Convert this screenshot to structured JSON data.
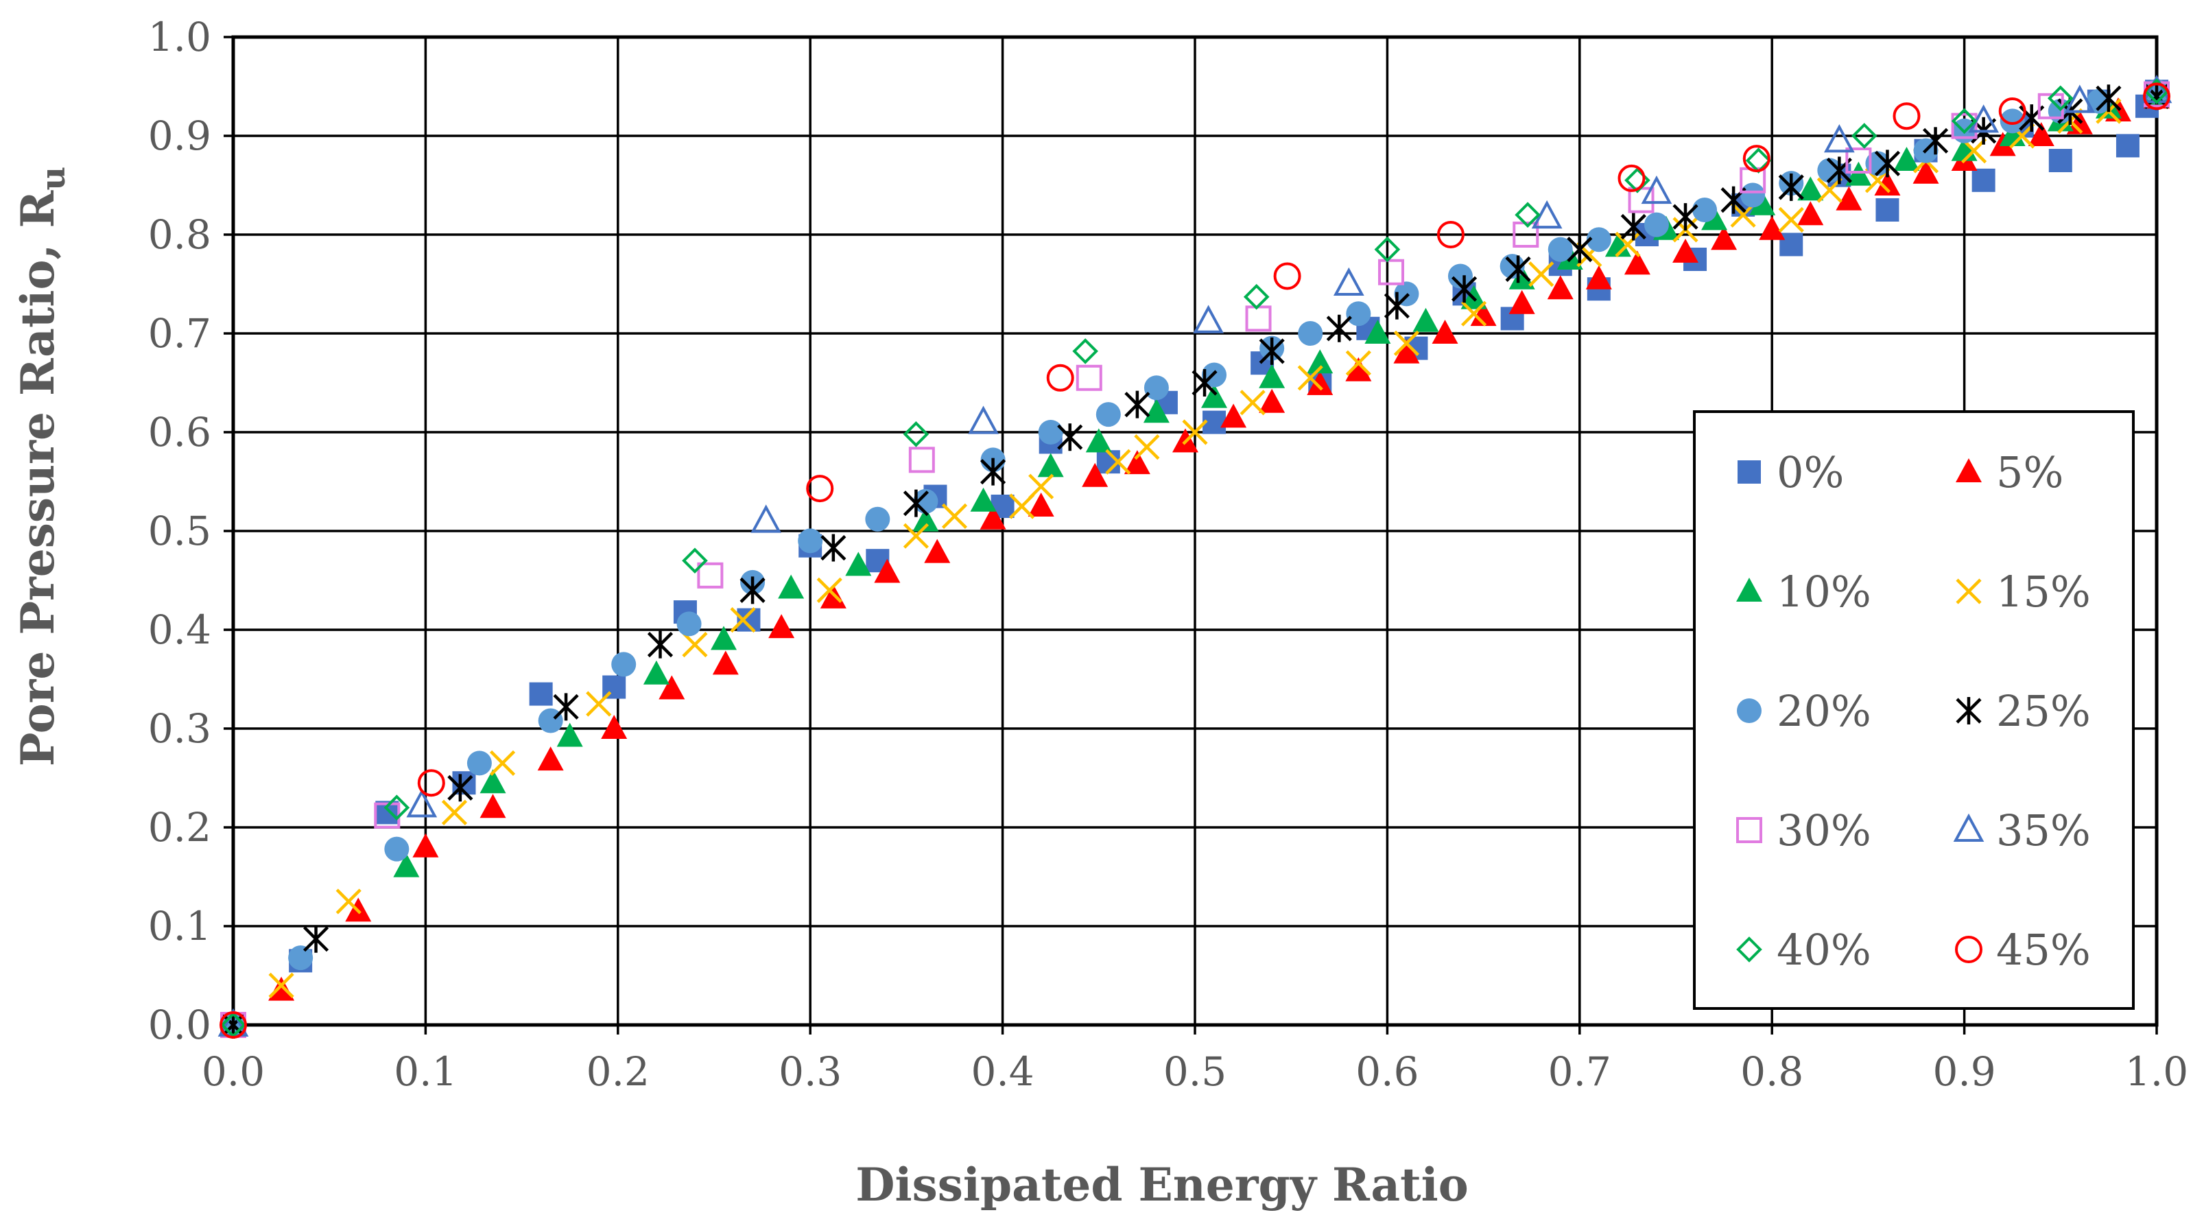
{
  "chart_data": {
    "type": "scatter",
    "title": "",
    "xlabel": "Dissipated Energy Ratio",
    "ylabel": "Pore Pressure Ratio, R",
    "ylabel_subscript": "u",
    "xlim": [
      0,
      1
    ],
    "ylim": [
      0,
      1
    ],
    "x_ticks": [
      "0.0",
      "0.1",
      "0.2",
      "0.3",
      "0.4",
      "0.5",
      "0.6",
      "0.7",
      "0.8",
      "0.9",
      "1.0"
    ],
    "y_ticks": [
      "0.0",
      "0.1",
      "0.2",
      "0.3",
      "0.4",
      "0.5",
      "0.6",
      "0.7",
      "0.8",
      "0.9",
      "1.0"
    ],
    "grid": true,
    "legend_position": "bottom-right",
    "series": [
      {
        "name": "0%",
        "marker": "square-filled",
        "color": "#4472C4",
        "points": [
          [
            0,
            0
          ],
          [
            0.035,
            0.065
          ],
          [
            0.08,
            0.215
          ],
          [
            0.12,
            0.245
          ],
          [
            0.16,
            0.335
          ],
          [
            0.198,
            0.342
          ],
          [
            0.235,
            0.418
          ],
          [
            0.268,
            0.41
          ],
          [
            0.3,
            0.485
          ],
          [
            0.335,
            0.47
          ],
          [
            0.365,
            0.535
          ],
          [
            0.4,
            0.525
          ],
          [
            0.425,
            0.59
          ],
          [
            0.455,
            0.57
          ],
          [
            0.485,
            0.63
          ],
          [
            0.51,
            0.61
          ],
          [
            0.535,
            0.67
          ],
          [
            0.565,
            0.65
          ],
          [
            0.59,
            0.705
          ],
          [
            0.615,
            0.685
          ],
          [
            0.64,
            0.74
          ],
          [
            0.665,
            0.715
          ],
          [
            0.69,
            0.77
          ],
          [
            0.71,
            0.745
          ],
          [
            0.735,
            0.8
          ],
          [
            0.76,
            0.775
          ],
          [
            0.785,
            0.83
          ],
          [
            0.81,
            0.79
          ],
          [
            0.835,
            0.86
          ],
          [
            0.86,
            0.825
          ],
          [
            0.88,
            0.885
          ],
          [
            0.91,
            0.855
          ],
          [
            0.93,
            0.91
          ],
          [
            0.95,
            0.875
          ],
          [
            0.97,
            0.935
          ],
          [
            0.985,
            0.89
          ],
          [
            0.995,
            0.93
          ],
          [
            1.0,
            0.945
          ]
        ]
      },
      {
        "name": "5%",
        "marker": "triangle-filled",
        "color": "#FF0000",
        "points": [
          [
            0,
            0
          ],
          [
            0.025,
            0.035
          ],
          [
            0.065,
            0.115
          ],
          [
            0.1,
            0.18
          ],
          [
            0.135,
            0.22
          ],
          [
            0.165,
            0.268
          ],
          [
            0.198,
            0.3
          ],
          [
            0.228,
            0.34
          ],
          [
            0.256,
            0.365
          ],
          [
            0.285,
            0.402
          ],
          [
            0.312,
            0.432
          ],
          [
            0.34,
            0.458
          ],
          [
            0.366,
            0.478
          ],
          [
            0.395,
            0.512
          ],
          [
            0.42,
            0.525
          ],
          [
            0.448,
            0.555
          ],
          [
            0.47,
            0.568
          ],
          [
            0.495,
            0.59
          ],
          [
            0.52,
            0.615
          ],
          [
            0.54,
            0.63
          ],
          [
            0.565,
            0.648
          ],
          [
            0.585,
            0.662
          ],
          [
            0.61,
            0.68
          ],
          [
            0.63,
            0.7
          ],
          [
            0.65,
            0.718
          ],
          [
            0.67,
            0.73
          ],
          [
            0.69,
            0.745
          ],
          [
            0.71,
            0.755
          ],
          [
            0.73,
            0.77
          ],
          [
            0.755,
            0.782
          ],
          [
            0.775,
            0.795
          ],
          [
            0.8,
            0.805
          ],
          [
            0.82,
            0.82
          ],
          [
            0.84,
            0.835
          ],
          [
            0.86,
            0.85
          ],
          [
            0.88,
            0.862
          ],
          [
            0.9,
            0.875
          ],
          [
            0.92,
            0.89
          ],
          [
            0.94,
            0.9
          ],
          [
            0.96,
            0.912
          ],
          [
            0.98,
            0.925
          ],
          [
            1.0,
            0.938
          ]
        ]
      },
      {
        "name": "10%",
        "marker": "triangle-filled",
        "color": "#00B050",
        "points": [
          [
            0,
            0
          ],
          [
            0.09,
            0.16
          ],
          [
            0.135,
            0.245
          ],
          [
            0.175,
            0.292
          ],
          [
            0.22,
            0.355
          ],
          [
            0.255,
            0.39
          ],
          [
            0.29,
            0.442
          ],
          [
            0.325,
            0.465
          ],
          [
            0.36,
            0.51
          ],
          [
            0.39,
            0.53
          ],
          [
            0.425,
            0.565
          ],
          [
            0.45,
            0.59
          ],
          [
            0.48,
            0.62
          ],
          [
            0.51,
            0.635
          ],
          [
            0.54,
            0.655
          ],
          [
            0.565,
            0.67
          ],
          [
            0.595,
            0.7
          ],
          [
            0.62,
            0.712
          ],
          [
            0.645,
            0.735
          ],
          [
            0.67,
            0.755
          ],
          [
            0.695,
            0.775
          ],
          [
            0.72,
            0.788
          ],
          [
            0.745,
            0.805
          ],
          [
            0.77,
            0.815
          ],
          [
            0.795,
            0.83
          ],
          [
            0.82,
            0.845
          ],
          [
            0.845,
            0.86
          ],
          [
            0.87,
            0.875
          ],
          [
            0.9,
            0.885
          ],
          [
            0.925,
            0.9
          ],
          [
            0.95,
            0.915
          ],
          [
            0.975,
            0.928
          ],
          [
            1.0,
            0.94
          ]
        ]
      },
      {
        "name": "15%",
        "marker": "x",
        "color": "#FFC000",
        "points": [
          [
            0,
            0
          ],
          [
            0.025,
            0.04
          ],
          [
            0.06,
            0.125
          ],
          [
            0.115,
            0.215
          ],
          [
            0.14,
            0.265
          ],
          [
            0.19,
            0.325
          ],
          [
            0.24,
            0.385
          ],
          [
            0.265,
            0.41
          ],
          [
            0.31,
            0.44
          ],
          [
            0.355,
            0.495
          ],
          [
            0.375,
            0.515
          ],
          [
            0.41,
            0.525
          ],
          [
            0.42,
            0.545
          ],
          [
            0.46,
            0.57
          ],
          [
            0.475,
            0.585
          ],
          [
            0.5,
            0.6
          ],
          [
            0.53,
            0.63
          ],
          [
            0.56,
            0.655
          ],
          [
            0.585,
            0.67
          ],
          [
            0.61,
            0.69
          ],
          [
            0.645,
            0.72
          ],
          [
            0.68,
            0.76
          ],
          [
            0.705,
            0.78
          ],
          [
            0.725,
            0.79
          ],
          [
            0.755,
            0.805
          ],
          [
            0.785,
            0.82
          ],
          [
            0.81,
            0.815
          ],
          [
            0.83,
            0.845
          ],
          [
            0.855,
            0.855
          ],
          [
            0.88,
            0.875
          ],
          [
            0.905,
            0.885
          ],
          [
            0.93,
            0.9
          ],
          [
            0.955,
            0.915
          ],
          [
            0.975,
            0.925
          ],
          [
            1.0,
            0.94
          ]
        ]
      },
      {
        "name": "20%",
        "marker": "circle-filled",
        "color": "#5B9BD5",
        "points": [
          [
            0,
            0
          ],
          [
            0.035,
            0.068
          ],
          [
            0.085,
            0.178
          ],
          [
            0.128,
            0.265
          ],
          [
            0.165,
            0.308
          ],
          [
            0.203,
            0.365
          ],
          [
            0.237,
            0.406
          ],
          [
            0.27,
            0.448
          ],
          [
            0.3,
            0.49
          ],
          [
            0.335,
            0.512
          ],
          [
            0.36,
            0.53
          ],
          [
            0.395,
            0.572
          ],
          [
            0.425,
            0.6
          ],
          [
            0.455,
            0.618
          ],
          [
            0.48,
            0.645
          ],
          [
            0.51,
            0.658
          ],
          [
            0.54,
            0.685
          ],
          [
            0.56,
            0.7
          ],
          [
            0.585,
            0.72
          ],
          [
            0.61,
            0.74
          ],
          [
            0.638,
            0.758
          ],
          [
            0.665,
            0.768
          ],
          [
            0.69,
            0.785
          ],
          [
            0.71,
            0.795
          ],
          [
            0.74,
            0.81
          ],
          [
            0.765,
            0.825
          ],
          [
            0.79,
            0.84
          ],
          [
            0.81,
            0.852
          ],
          [
            0.83,
            0.865
          ],
          [
            0.855,
            0.872
          ],
          [
            0.88,
            0.885
          ],
          [
            0.9,
            0.905
          ],
          [
            0.925,
            0.915
          ],
          [
            0.95,
            0.925
          ],
          [
            0.97,
            0.935
          ],
          [
            1.0,
            0.945
          ]
        ]
      },
      {
        "name": "25%",
        "marker": "star",
        "color": "#000000",
        "points": [
          [
            0,
            0
          ],
          [
            0.043,
            0.087
          ],
          [
            0.118,
            0.24
          ],
          [
            0.173,
            0.322
          ],
          [
            0.222,
            0.385
          ],
          [
            0.27,
            0.44
          ],
          [
            0.312,
            0.483
          ],
          [
            0.355,
            0.528
          ],
          [
            0.395,
            0.56
          ],
          [
            0.435,
            0.595
          ],
          [
            0.47,
            0.628
          ],
          [
            0.505,
            0.65
          ],
          [
            0.54,
            0.682
          ],
          [
            0.575,
            0.705
          ],
          [
            0.605,
            0.728
          ],
          [
            0.64,
            0.745
          ],
          [
            0.668,
            0.765
          ],
          [
            0.7,
            0.785
          ],
          [
            0.728,
            0.808
          ],
          [
            0.755,
            0.818
          ],
          [
            0.78,
            0.835
          ],
          [
            0.81,
            0.848
          ],
          [
            0.835,
            0.865
          ],
          [
            0.86,
            0.872
          ],
          [
            0.885,
            0.895
          ],
          [
            0.91,
            0.905
          ],
          [
            0.935,
            0.918
          ],
          [
            0.955,
            0.925
          ],
          [
            0.975,
            0.938
          ],
          [
            1.0,
            0.94
          ]
        ]
      },
      {
        "name": "30%",
        "marker": "square-open",
        "color": "#E07BE0",
        "points": [
          [
            0,
            0
          ],
          [
            0.08,
            0.212
          ],
          [
            0.248,
            0.455
          ],
          [
            0.358,
            0.572
          ],
          [
            0.445,
            0.655
          ],
          [
            0.533,
            0.715
          ],
          [
            0.602,
            0.762
          ],
          [
            0.672,
            0.8
          ],
          [
            0.732,
            0.835
          ],
          [
            0.79,
            0.855
          ],
          [
            0.845,
            0.875
          ],
          [
            0.9,
            0.91
          ],
          [
            0.945,
            0.93
          ],
          [
            1.0,
            0.942
          ]
        ]
      },
      {
        "name": "35%",
        "marker": "triangle-open",
        "color": "#4472C4",
        "points": [
          [
            0,
            0
          ],
          [
            0.098,
            0.222
          ],
          [
            0.277,
            0.51
          ],
          [
            0.39,
            0.61
          ],
          [
            0.507,
            0.712
          ],
          [
            0.58,
            0.75
          ],
          [
            0.683,
            0.818
          ],
          [
            0.74,
            0.843
          ],
          [
            0.835,
            0.895
          ],
          [
            0.91,
            0.915
          ],
          [
            0.96,
            0.935
          ],
          [
            1.0,
            0.945
          ]
        ]
      },
      {
        "name": "40%",
        "marker": "diamond-open",
        "color": "#00B050",
        "points": [
          [
            0,
            0
          ],
          [
            0.085,
            0.22
          ],
          [
            0.24,
            0.47
          ],
          [
            0.355,
            0.598
          ],
          [
            0.443,
            0.682
          ],
          [
            0.532,
            0.737
          ],
          [
            0.6,
            0.785
          ],
          [
            0.673,
            0.82
          ],
          [
            0.73,
            0.855
          ],
          [
            0.793,
            0.875
          ],
          [
            0.848,
            0.9
          ],
          [
            0.9,
            0.915
          ],
          [
            0.95,
            0.938
          ],
          [
            1.0,
            0.945
          ]
        ]
      },
      {
        "name": "45%",
        "marker": "circle-open",
        "color": "#FF0000",
        "points": [
          [
            0,
            0
          ],
          [
            0.103,
            0.245
          ],
          [
            0.305,
            0.543
          ],
          [
            0.43,
            0.655
          ],
          [
            0.548,
            0.758
          ],
          [
            0.633,
            0.8
          ],
          [
            0.727,
            0.857
          ],
          [
            0.792,
            0.877
          ],
          [
            0.87,
            0.92
          ],
          [
            0.925,
            0.925
          ],
          [
            1.0,
            0.94
          ]
        ]
      }
    ]
  }
}
